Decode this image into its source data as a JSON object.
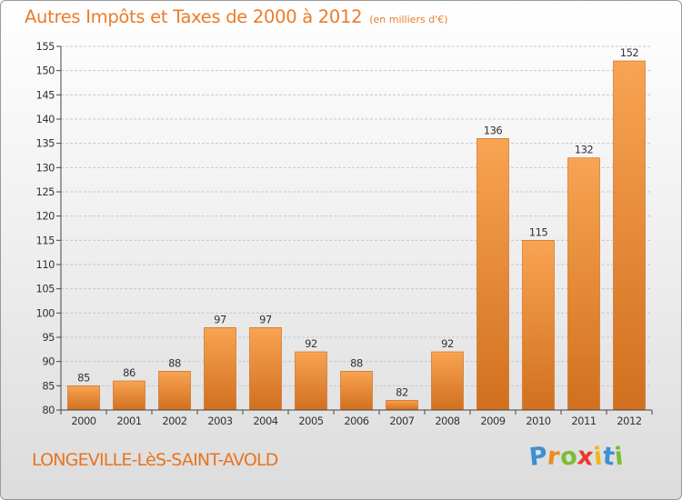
{
  "header": {
    "title": "Autres Impôts et Taxes de 2000 à 2012",
    "unit": "(en milliers d'€)"
  },
  "footer": {
    "town": "LONGEVILLE-LèS-SAINT-AVOLD",
    "logo": {
      "letters": [
        "P",
        "r",
        "o",
        "x",
        "i",
        "t",
        "i"
      ],
      "colors": [
        "#3f8fd3",
        "#f08a1c",
        "#7cbd33",
        "#e63b2e",
        "#f0b71a",
        "#3f8fd3",
        "#7cbd33"
      ]
    }
  },
  "chart_data": {
    "type": "bar",
    "title": "Autres Impôts et Taxes de 2000 à 2012",
    "subtitle": "(en milliers d'€)",
    "xlabel": "",
    "ylabel": "",
    "categories": [
      "2000",
      "2001",
      "2002",
      "2003",
      "2004",
      "2005",
      "2006",
      "2007",
      "2008",
      "2009",
      "2010",
      "2011",
      "2012"
    ],
    "values": [
      85,
      86,
      88,
      97,
      97,
      92,
      88,
      82,
      92,
      136,
      115,
      132,
      152
    ],
    "ylim": [
      80,
      155
    ],
    "yticks": [
      80,
      85,
      90,
      95,
      100,
      105,
      110,
      115,
      120,
      125,
      130,
      135,
      140,
      145,
      150,
      155
    ],
    "grid": true,
    "legend": "none",
    "colors": {
      "bar_top": "#f8a452",
      "bar_bottom": "#d1701f",
      "bar_edge": "#c8661a",
      "grid": "#c8c8c8",
      "axis": "#444444",
      "text": "#333333"
    }
  }
}
